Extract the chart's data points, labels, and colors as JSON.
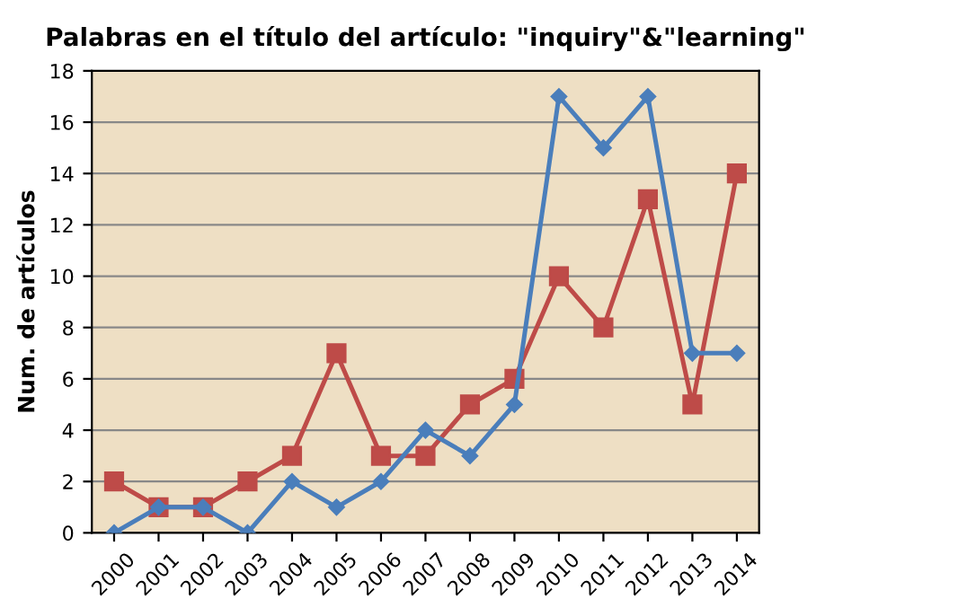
{
  "chart_data": {
    "type": "line",
    "title": "Palabras en el título del artículo: \"inquiry\"&\"learning\"",
    "ylabel": "Num. de artículos",
    "categories": [
      "2000",
      "2001",
      "2002",
      "2003",
      "2004",
      "2005",
      "2006",
      "2007",
      "2008",
      "2009",
      "2010",
      "2011",
      "2012",
      "2013",
      "2014"
    ],
    "series": [
      {
        "color": "#4a7ebb",
        "marker": "diamond",
        "values": [
          0,
          1,
          1,
          0,
          2,
          1,
          2,
          4,
          3,
          5,
          17,
          15,
          17,
          7,
          7
        ]
      },
      {
        "color": "#be4b48",
        "marker": "square",
        "values": [
          2,
          1,
          1,
          2,
          3,
          7,
          3,
          3,
          5,
          6,
          10,
          8,
          13,
          5,
          14
        ]
      }
    ],
    "ylim": [
      0,
      18
    ],
    "yticks": [
      0,
      2,
      4,
      6,
      8,
      10,
      12,
      14,
      16,
      18
    ],
    "grid": "y",
    "line_style": "solid"
  }
}
